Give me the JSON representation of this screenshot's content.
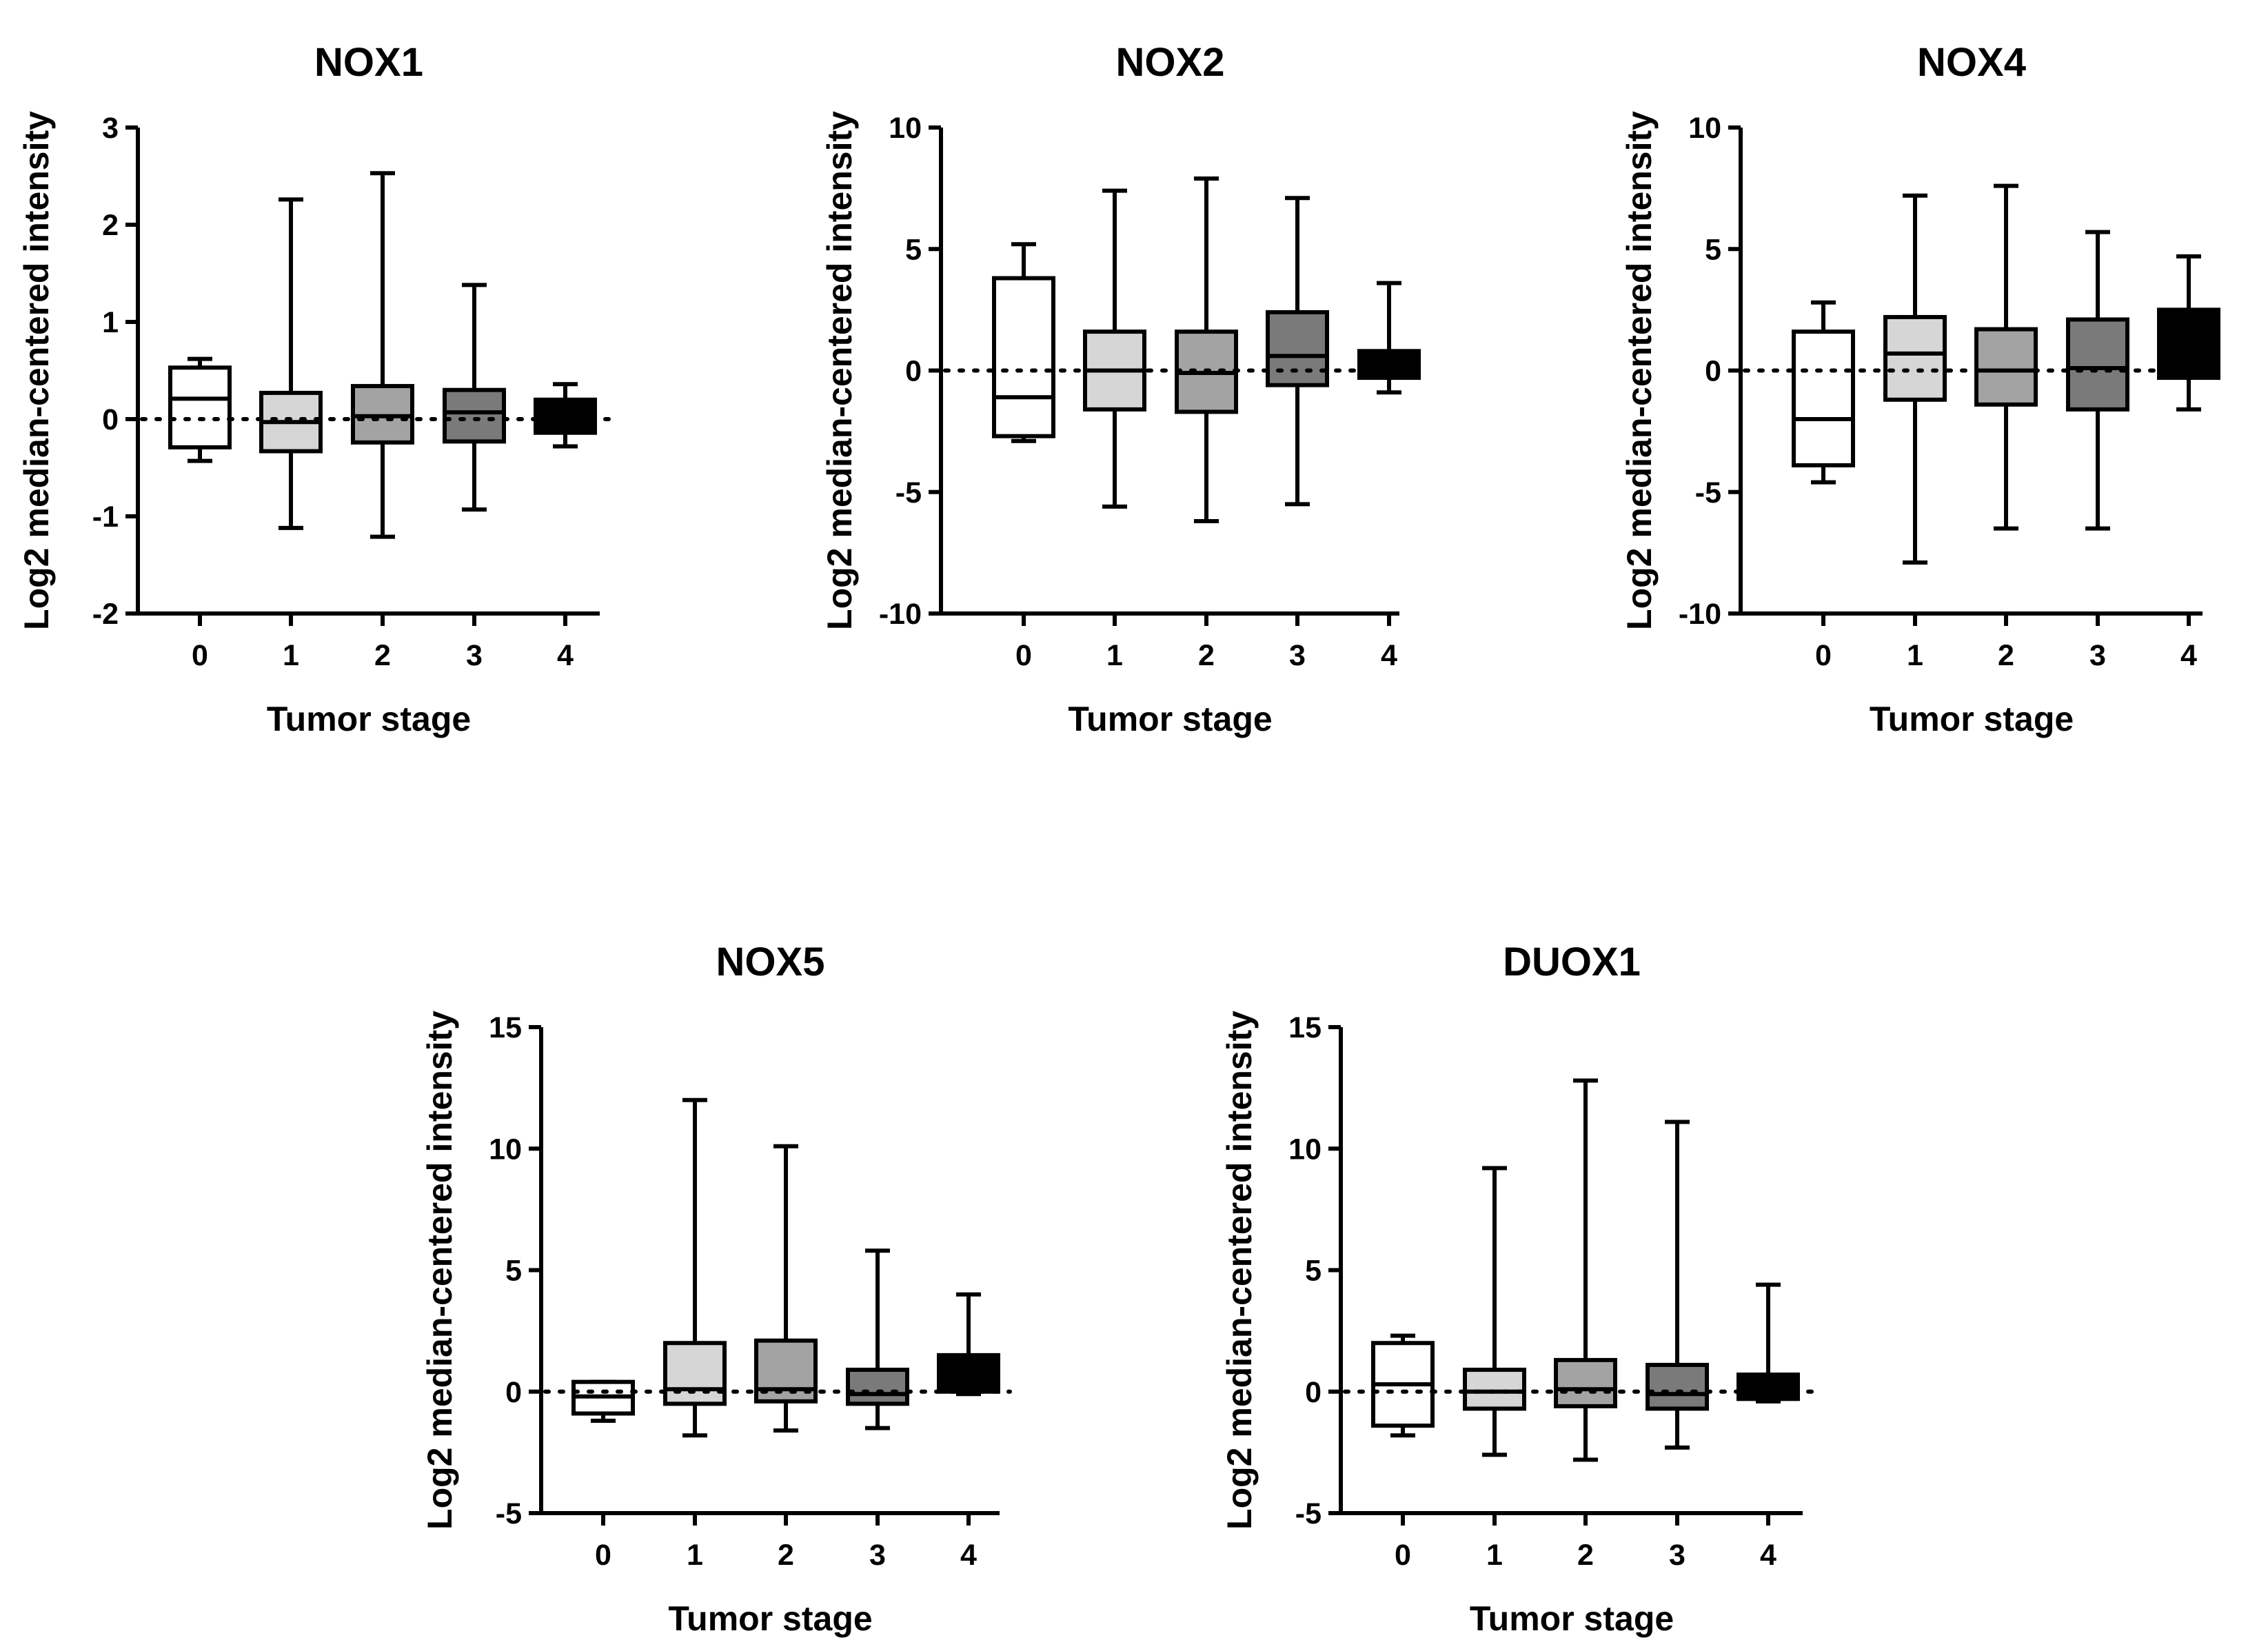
{
  "chart_data": [
    {
      "type": "boxplot",
      "title": "NOX1",
      "xlabel": "Tumor stage",
      "ylabel": "Log2 median-centered intensity",
      "categories": [
        "0",
        "1",
        "2",
        "3",
        "4"
      ],
      "ylim": [
        -2,
        3
      ],
      "yticks": [
        "-2",
        "-1",
        "0",
        "1",
        "2",
        "3"
      ],
      "reference_line": 0,
      "box_colors": [
        "#ffffff",
        "#d6d6d6",
        "#a3a3a3",
        "#7a7a7a",
        "#000000"
      ],
      "boxes": [
        {
          "min": -0.43,
          "q1": -0.29,
          "median": 0.21,
          "q3": 0.53,
          "max": 0.62
        },
        {
          "min": -1.12,
          "q1": -0.33,
          "median": -0.03,
          "q3": 0.27,
          "max": 2.26
        },
        {
          "min": -1.21,
          "q1": -0.24,
          "median": 0.03,
          "q3": 0.34,
          "max": 2.53
        },
        {
          "min": -0.93,
          "q1": -0.23,
          "median": 0.07,
          "q3": 0.3,
          "max": 1.38
        },
        {
          "min": -0.28,
          "q1": -0.14,
          "median": 0.02,
          "q3": 0.2,
          "max": 0.36
        }
      ]
    },
    {
      "type": "boxplot",
      "title": "NOX2",
      "xlabel": "Tumor stage",
      "ylabel": "Log2 median-centered intensity",
      "categories": [
        "0",
        "1",
        "2",
        "3",
        "4"
      ],
      "ylim": [
        -10,
        10
      ],
      "yticks": [
        "-10",
        "-5",
        "0",
        "5",
        "10"
      ],
      "reference_line": 0,
      "box_colors": [
        "#ffffff",
        "#d6d6d6",
        "#a3a3a3",
        "#7a7a7a",
        "#000000"
      ],
      "boxes": [
        {
          "min": -2.9,
          "q1": -2.7,
          "median": -1.1,
          "q3": 3.8,
          "max": 5.2
        },
        {
          "min": -5.6,
          "q1": -1.6,
          "median": 0.0,
          "q3": 1.6,
          "max": 7.4
        },
        {
          "min": -6.2,
          "q1": -1.7,
          "median": -0.1,
          "q3": 1.6,
          "max": 7.9
        },
        {
          "min": -5.5,
          "q1": -0.6,
          "median": 0.6,
          "q3": 2.4,
          "max": 7.1
        },
        {
          "min": -0.9,
          "q1": -0.3,
          "median": 0.2,
          "q3": 0.8,
          "max": 3.6
        }
      ]
    },
    {
      "type": "boxplot",
      "title": "NOX4",
      "xlabel": "Tumor stage",
      "ylabel": "Log2 median-centered intensity",
      "categories": [
        "0",
        "1",
        "2",
        "3",
        "4"
      ],
      "ylim": [
        -10,
        10
      ],
      "yticks": [
        "-10",
        "-5",
        "0",
        "5",
        "10"
      ],
      "reference_line": 0,
      "box_colors": [
        "#ffffff",
        "#d6d6d6",
        "#a3a3a3",
        "#7a7a7a",
        "#000000"
      ],
      "boxes": [
        {
          "min": -4.6,
          "q1": -3.9,
          "median": -2.0,
          "q3": 1.6,
          "max": 2.8
        },
        {
          "min": -7.9,
          "q1": -1.2,
          "median": 0.7,
          "q3": 2.2,
          "max": 7.2
        },
        {
          "min": -6.5,
          "q1": -1.4,
          "median": 0.0,
          "q3": 1.7,
          "max": 7.6
        },
        {
          "min": -6.5,
          "q1": -1.6,
          "median": 0.1,
          "q3": 2.1,
          "max": 5.7
        },
        {
          "min": -1.6,
          "q1": -0.3,
          "median": 1.2,
          "q3": 2.5,
          "max": 4.7
        }
      ]
    },
    {
      "type": "boxplot",
      "title": "NOX5",
      "xlabel": "Tumor stage",
      "ylabel": "Log2 median-centered intensity",
      "categories": [
        "0",
        "1",
        "2",
        "3",
        "4"
      ],
      "ylim": [
        -5,
        15
      ],
      "yticks": [
        "-5",
        "0",
        "5",
        "10",
        "15"
      ],
      "reference_line": 0,
      "box_colors": [
        "#ffffff",
        "#d6d6d6",
        "#a3a3a3",
        "#7a7a7a",
        "#000000"
      ],
      "boxes": [
        {
          "min": -1.2,
          "q1": -0.9,
          "median": -0.2,
          "q3": 0.4,
          "max": 0.4
        },
        {
          "min": -1.8,
          "q1": -0.5,
          "median": 0.1,
          "q3": 2.0,
          "max": 12.0
        },
        {
          "min": -1.6,
          "q1": -0.4,
          "median": 0.1,
          "q3": 2.1,
          "max": 10.1
        },
        {
          "min": -1.5,
          "q1": -0.5,
          "median": -0.1,
          "q3": 0.9,
          "max": 5.8
        },
        {
          "min": -0.1,
          "q1": 0.0,
          "median": 0.7,
          "q3": 1.5,
          "max": 4.0
        }
      ]
    },
    {
      "type": "boxplot",
      "title": "DUOX1",
      "xlabel": "Tumor stage",
      "ylabel": "Log2 median-centered intensity",
      "categories": [
        "0",
        "1",
        "2",
        "3",
        "4"
      ],
      "ylim": [
        -5,
        15
      ],
      "yticks": [
        "-5",
        "0",
        "5",
        "10",
        "15"
      ],
      "reference_line": 0,
      "box_colors": [
        "#ffffff",
        "#d6d6d6",
        "#a3a3a3",
        "#7a7a7a",
        "#000000"
      ],
      "boxes": [
        {
          "min": -1.8,
          "q1": -1.4,
          "median": 0.3,
          "q3": 2.0,
          "max": 2.3
        },
        {
          "min": -2.6,
          "q1": -0.7,
          "median": 0.0,
          "q3": 0.9,
          "max": 9.2
        },
        {
          "min": -2.8,
          "q1": -0.6,
          "median": 0.1,
          "q3": 1.3,
          "max": 12.8
        },
        {
          "min": -2.3,
          "q1": -0.7,
          "median": -0.1,
          "q3": 1.1,
          "max": 11.1
        },
        {
          "min": -0.4,
          "q1": -0.3,
          "median": 0.2,
          "q3": 0.7,
          "max": 4.4
        }
      ]
    }
  ]
}
